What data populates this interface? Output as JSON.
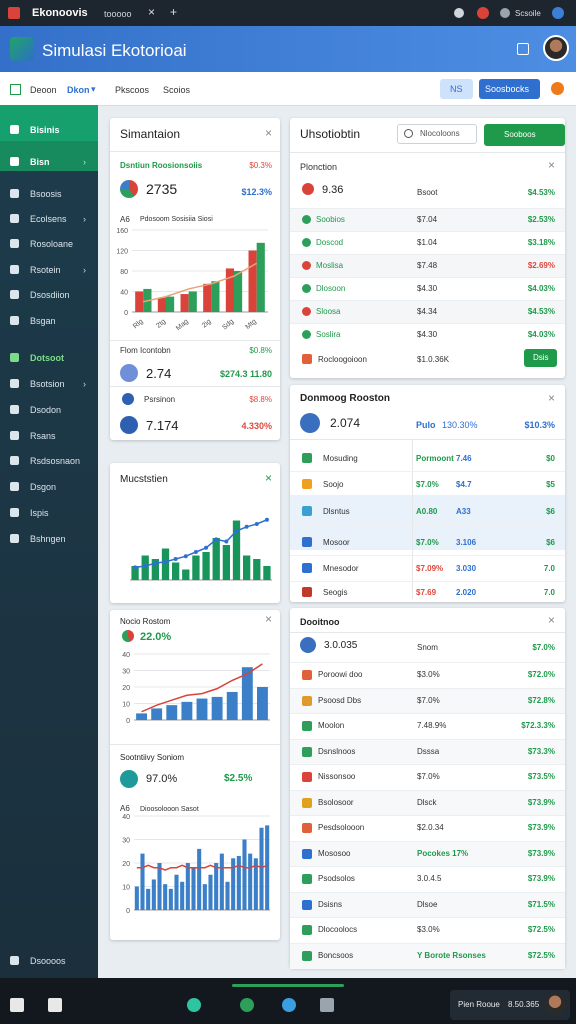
{
  "browser": {
    "tab": "Ekonoovis",
    "tab2": "tooooo",
    "profile": "Scsoile"
  },
  "header": {
    "title": "Simulasi Ekotorioai"
  },
  "toolbar": {
    "items": [
      "Deoon",
      "Dkon",
      "Pkscoos",
      "Scoios"
    ],
    "badge": "NS",
    "button": "Soosbocks"
  },
  "sidebar": {
    "top": [
      "Bisinis",
      "Bisn"
    ],
    "items": [
      "Bsoosis",
      "Ecolsens",
      "Rosoloane",
      "Rsotein",
      "Dsosdiion",
      "Bsgan"
    ],
    "section": "Dotsoot",
    "items2": [
      "Bsotsion",
      "Dsodon",
      "Rsans",
      "Rsdsosnaon",
      "Dsgon",
      "Ispis",
      "Bshngen"
    ],
    "footer": "Dsoooos"
  },
  "overview": {
    "title": "Simantaion",
    "subtitle": "Dsntiun Roosionsoiis",
    "subtitle_value": "$0.3%",
    "value": "2735",
    "change": "$12.3%",
    "chart_label": "A6",
    "chart_title": "Pdosoom Sosisiia Siosi",
    "chart": {
      "type": "bar",
      "ylim": [
        0,
        160
      ],
      "yticks": [
        0,
        40,
        80,
        120,
        160
      ],
      "categories": [
        "Rlg",
        "2tg",
        "Mag",
        "2ig",
        "Sdg",
        "Mtg"
      ],
      "series": [
        {
          "type": "bar",
          "color": "#d9433a",
          "values": [
            40,
            28,
            35,
            55,
            85,
            120
          ]
        },
        {
          "type": "bar",
          "color": "#2e9e5b",
          "values": [
            45,
            30,
            40,
            60,
            80,
            135
          ]
        },
        {
          "type": "line",
          "color": "#e8a37a",
          "values": [
            20,
            30,
            45,
            55,
            70,
            95
          ]
        }
      ]
    },
    "rows_title": "Flom Icontobn",
    "rows_title_value": "$0.8%",
    "rows_label": "Psrsinon",
    "rows_label_value": "$8.8%",
    "rows": [
      {
        "value": "2.74",
        "change": "$274.3 11.80",
        "tone": "green",
        "icon_color": "#6f8fd8"
      },
      {
        "value": "7.174",
        "change": "4.330%",
        "tone": "red",
        "icon_color": "#2f5fb0"
      }
    ]
  },
  "products": {
    "title": "Uhsotiobtin",
    "search": "Nlocoloons",
    "button": "Sooboos",
    "table_title": "Plonction",
    "lead": {
      "value": "9.36",
      "label": "Bsoot",
      "change": "$4.53%"
    },
    "rows": [
      {
        "name": "Soobios",
        "price": "$7.04",
        "change": "$2.53%",
        "tone": "green",
        "icon_color": "#2e9e5b"
      },
      {
        "name": "Doscod",
        "price": "$1.04",
        "change": "$3.18%",
        "tone": "green",
        "icon_color": "#2e9e5b"
      },
      {
        "name": "Moslisa",
        "price": "$7.48",
        "change": "$2.69%",
        "tone": "red",
        "icon_color": "#d9433a"
      },
      {
        "name": "Dlosoon",
        "price": "$4.30",
        "change": "$4.03%",
        "tone": "green",
        "icon_color": "#2e9e5b"
      },
      {
        "name": "Sloosa",
        "price": "$4.34",
        "change": "$4.53%",
        "tone": "green",
        "icon_color": "#d9433a"
      },
      {
        "name": "Soslira",
        "price": "$4.30",
        "change": "$4.03%",
        "tone": "green",
        "icon_color": "#2e9e5b"
      }
    ],
    "footer": {
      "name": "Rocloogoioon",
      "price": "$1.0.36K",
      "action": "Dsis"
    }
  },
  "trend": {
    "title": "Mucststien",
    "chart": {
      "type": "bar",
      "ylim": [
        0,
        100
      ],
      "series": [
        {
          "type": "bar",
          "color": "#17955a",
          "values": [
            20,
            35,
            30,
            45,
            25,
            15,
            35,
            40,
            60,
            50,
            85,
            35,
            30,
            20
          ]
        },
        {
          "type": "line",
          "color": "#2f6fd0",
          "markers": true,
          "values": [
            18,
            20,
            24,
            26,
            30,
            34,
            40,
            46,
            58,
            55,
            70,
            76,
            80,
            86
          ]
        }
      ]
    }
  },
  "ranking": {
    "title": "Donmoog Rooston",
    "value": "2.074",
    "tag": "Pulo",
    "tag_value": "130.30%",
    "change": "$10.3%",
    "rows": [
      {
        "name": "Mosuding",
        "a": "Pormoont",
        "b": "7.46",
        "c": "$0",
        "tone": "green",
        "icon_color": "#2e9e5b"
      },
      {
        "name": "Soojo",
        "a": "$7.0%",
        "b": "$4.7",
        "c": "$5",
        "tone": "green",
        "icon_color": "#f0a020"
      },
      {
        "name": "Dlsntus",
        "a": "A0.80",
        "b": "A33",
        "c": "$6",
        "tone": "green",
        "icon_color": "#3aa0d0"
      },
      {
        "name": "Mosoor",
        "a": "$7.0%",
        "b": "3.106",
        "c": "$6",
        "tone": "green",
        "icon_color": "#2f6fd0"
      },
      {
        "name": "Mnesodor",
        "a": "$7.09%",
        "b": "3.030",
        "c": "7.0",
        "tone": "red",
        "icon_color": "#2f6fd0"
      },
      {
        "name": "Seogis",
        "a": "$7.69",
        "b": "2.020",
        "c": "7.0",
        "tone": "red",
        "icon_color": "#c0392b"
      }
    ]
  },
  "growth": {
    "title": "Nocio Rostom",
    "value": "22.0%",
    "chart": {
      "type": "bar",
      "ylim": [
        0,
        40
      ],
      "yticks": [
        0,
        10,
        20,
        30,
        40
      ],
      "series": [
        {
          "type": "bar",
          "color": "#3a7fc8",
          "values": [
            4,
            7,
            9,
            11,
            13,
            14,
            17,
            32,
            20
          ]
        },
        {
          "type": "line",
          "color": "#d9433a",
          "values": [
            5,
            9,
            12,
            15,
            16,
            19,
            24,
            28,
            34
          ]
        }
      ]
    }
  },
  "activity": {
    "title": "Sootntiivy Soniom",
    "value": "97.0%",
    "change": "$2.5%",
    "chart_label": "A6",
    "chart_title": "Dioosolooon Sasot",
    "chart": {
      "type": "bar",
      "ylim": [
        0,
        40
      ],
      "yticks": [
        0,
        10,
        20,
        30,
        40
      ],
      "series": [
        {
          "type": "bar",
          "color": "#3a7fc8",
          "values": [
            10,
            24,
            9,
            13,
            20,
            11,
            9,
            15,
            12,
            20,
            18,
            26,
            11,
            15,
            20,
            24,
            12,
            22,
            23,
            30,
            24,
            22,
            35,
            36
          ]
        },
        {
          "type": "line",
          "color": "#d9433a",
          "values": [
            18,
            18,
            19,
            18,
            18,
            17,
            18,
            18,
            19,
            18,
            18,
            18,
            18,
            19,
            18,
            18,
            18,
            18,
            19,
            18,
            18,
            19,
            18,
            19
          ]
        }
      ]
    }
  },
  "ledger": {
    "title": "Dooitnoo",
    "lead": {
      "value": "3.0.035",
      "label": "Snom",
      "change": "$7.0%"
    },
    "rows": [
      {
        "name": "Poroowi doo",
        "mid": "$3.0%",
        "value": "$72.0%",
        "icon_color": "#e0603a"
      },
      {
        "name": "Psoosd Dbs",
        "mid": "$7.0%",
        "value": "$72.8%",
        "icon_color": "#e09a2a"
      },
      {
        "name": "Moolon",
        "mid": "7.48.9%",
        "value": "$72.3.3%",
        "icon_color": "#2e9e5b"
      },
      {
        "name": "Dsnslnoos",
        "mid": "Dsssa",
        "value": "$73.3%",
        "icon_color": "#2e9e5b"
      },
      {
        "name": "Nissonsoo",
        "mid": "$7.0%",
        "value": "$73.5%",
        "icon_color": "#d9433a"
      },
      {
        "name": "Bsolosoor",
        "mid": "Dlsck",
        "value": "$73.9%",
        "icon_color": "#e0a020"
      },
      {
        "name": "Pesdsolooon",
        "mid": "$2.0.34",
        "value": "$73.9%",
        "icon_color": "#e0603a"
      },
      {
        "name": "Mososoo",
        "mid": "Pocokes 17%",
        "value": "$73.9%",
        "icon_color": "#2f6fd0"
      },
      {
        "name": "Psodsolos",
        "mid": "3.0.4.5",
        "value": "$73.9%",
        "icon_color": "#2e9e5b"
      },
      {
        "name": "Dsisns",
        "mid": "Dlsoe",
        "value": "$71.5%",
        "icon_color": "#2f6fd0"
      },
      {
        "name": "Dlocoolocs",
        "mid": "$3.0%",
        "value": "$72.5%",
        "icon_color": "#2e9e5b"
      },
      {
        "name": "Boncsoos",
        "mid": "Y Borote Rsonses",
        "value": "$72.5%",
        "icon_color": "#2e9e5b"
      }
    ]
  },
  "taskbar": {
    "notice": "Pien Rooue",
    "notice_value": "8.50.365"
  }
}
